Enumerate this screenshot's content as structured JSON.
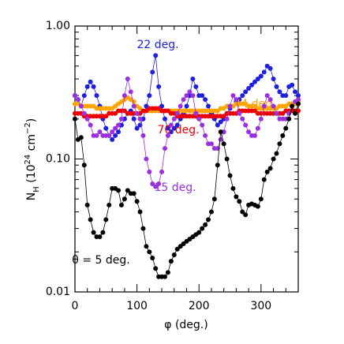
{
  "chart_data": {
    "type": "scatter_line",
    "xlabel": "φ (deg.)",
    "ylabel": [
      {
        "text": "N"
      },
      {
        "text": "H",
        "style": "sub"
      },
      {
        "text": " (10"
      },
      {
        "text": "24",
        "style": "sup"
      },
      {
        "text": " cm"
      },
      {
        "text": "−2",
        "style": "sup"
      },
      {
        "text": ")"
      }
    ],
    "log_y": true,
    "xlim": [
      0,
      360
    ],
    "xticks": [
      0,
      100,
      200,
      300
    ],
    "xminorticks": [
      20,
      40,
      60,
      80,
      120,
      140,
      160,
      180,
      220,
      240,
      260,
      280,
      320,
      340
    ],
    "ylim": [
      0.01,
      1
    ],
    "yticks": [
      0.01,
      {
        "value": 0.1,
        "label": "0.10"
      },
      {
        "value": 1,
        "label": "1.00"
      }
    ],
    "yminorticks": [
      0.02,
      0.03,
      0.04,
      0.05,
      0.06,
      0.07,
      0.08,
      0.09,
      0.2,
      0.3,
      0.4,
      0.5,
      0.6,
      0.7,
      0.8,
      0.9
    ],
    "x": [
      0,
      5,
      10,
      15,
      20,
      25,
      30,
      35,
      40,
      45,
      50,
      55,
      60,
      65,
      70,
      75,
      80,
      85,
      90,
      95,
      100,
      105,
      110,
      115,
      120,
      125,
      130,
      135,
      140,
      145,
      150,
      155,
      160,
      165,
      170,
      175,
      180,
      185,
      190,
      195,
      200,
      205,
      210,
      215,
      220,
      225,
      230,
      235,
      240,
      245,
      250,
      255,
      260,
      265,
      270,
      275,
      280,
      285,
      290,
      295,
      300,
      305,
      310,
      315,
      320,
      325,
      330,
      335,
      340,
      345,
      350,
      355,
      360
    ],
    "series": [
      {
        "name": "22 deg.",
        "color": "#1f1fe0",
        "values": [
          0.3,
          0.28,
          0.25,
          0.3,
          0.35,
          0.38,
          0.35,
          0.3,
          0.25,
          0.2,
          0.17,
          0.15,
          0.14,
          0.15,
          0.16,
          0.18,
          0.2,
          0.22,
          0.23,
          0.2,
          0.17,
          0.18,
          0.2,
          0.25,
          0.3,
          0.45,
          0.6,
          0.35,
          0.25,
          0.2,
          0.17,
          0.16,
          0.17,
          0.18,
          0.2,
          0.22,
          0.25,
          0.3,
          0.4,
          0.35,
          0.3,
          0.3,
          0.28,
          0.25,
          0.22,
          0.2,
          0.18,
          0.19,
          0.2,
          0.22,
          0.24,
          0.25,
          0.27,
          0.28,
          0.3,
          0.32,
          0.34,
          0.36,
          0.38,
          0.4,
          0.42,
          0.45,
          0.5,
          0.48,
          0.4,
          0.35,
          0.32,
          0.3,
          0.3,
          0.35,
          0.36,
          0.32,
          0.3
        ]
      },
      {
        "name": "44 deg.",
        "color": "#ffa500",
        "values": [
          0.26,
          0.26,
          0.25,
          0.25,
          0.25,
          0.25,
          0.25,
          0.24,
          0.24,
          0.24,
          0.24,
          0.24,
          0.24,
          0.25,
          0.26,
          0.27,
          0.28,
          0.29,
          0.28,
          0.27,
          0.25,
          0.24,
          0.23,
          0.23,
          0.23,
          0.23,
          0.23,
          0.23,
          0.23,
          0.23,
          0.23,
          0.23,
          0.23,
          0.23,
          0.23,
          0.23,
          0.23,
          0.23,
          0.23,
          0.23,
          0.23,
          0.23,
          0.23,
          0.23,
          0.23,
          0.23,
          0.23,
          0.24,
          0.24,
          0.25,
          0.25,
          0.25,
          0.26,
          0.26,
          0.26,
          0.26,
          0.25,
          0.25,
          0.25,
          0.24,
          0.24,
          0.24,
          0.24,
          0.24,
          0.24,
          0.24,
          0.25,
          0.25,
          0.25,
          0.26,
          0.26,
          0.26,
          0.27
        ]
      },
      {
        "name": "70 deg.",
        "color": "#ee0000",
        "values": [
          0.22,
          0.22,
          0.22,
          0.21,
          0.21,
          0.21,
          0.21,
          0.21,
          0.21,
          0.21,
          0.21,
          0.22,
          0.22,
          0.22,
          0.23,
          0.23,
          0.23,
          0.22,
          0.22,
          0.22,
          0.22,
          0.22,
          0.23,
          0.23,
          0.24,
          0.24,
          0.24,
          0.24,
          0.23,
          0.23,
          0.23,
          0.22,
          0.22,
          0.21,
          0.21,
          0.21,
          0.21,
          0.21,
          0.21,
          0.21,
          0.21,
          0.21,
          0.21,
          0.21,
          0.21,
          0.21,
          0.21,
          0.21,
          0.21,
          0.22,
          0.22,
          0.22,
          0.22,
          0.23,
          0.23,
          0.23,
          0.23,
          0.23,
          0.23,
          0.22,
          0.22,
          0.22,
          0.22,
          0.22,
          0.22,
          0.22,
          0.22,
          0.22,
          0.23,
          0.23,
          0.23,
          0.23,
          0.23
        ]
      },
      {
        "name": "15 deg.",
        "color": "#9b30e0",
        "values": [
          0.3,
          0.28,
          0.25,
          0.22,
          0.2,
          0.18,
          0.15,
          0.15,
          0.16,
          0.15,
          0.15,
          0.15,
          0.16,
          0.17,
          0.18,
          0.2,
          0.3,
          0.4,
          0.32,
          0.25,
          0.22,
          0.2,
          0.15,
          0.1,
          0.08,
          0.065,
          0.062,
          0.065,
          0.08,
          0.12,
          0.15,
          0.18,
          0.2,
          0.22,
          0.25,
          0.28,
          0.3,
          0.32,
          0.3,
          0.22,
          0.2,
          0.18,
          0.15,
          0.13,
          0.13,
          0.12,
          0.12,
          0.14,
          0.16,
          0.2,
          0.25,
          0.3,
          0.28,
          0.22,
          0.2,
          0.18,
          0.16,
          0.15,
          0.15,
          0.17,
          0.2,
          0.25,
          0.3,
          0.28,
          0.25,
          0.22,
          0.2,
          0.2,
          0.2,
          0.22,
          0.25,
          0.27,
          0.28
        ]
      },
      {
        "name": "θ = 5 deg.",
        "color": "#000000",
        "values": [
          0.2,
          0.14,
          0.145,
          0.09,
          0.045,
          0.035,
          0.028,
          0.026,
          0.026,
          0.028,
          0.035,
          0.045,
          0.06,
          0.06,
          0.058,
          0.045,
          0.05,
          0.058,
          0.055,
          0.055,
          0.048,
          0.04,
          0.03,
          0.022,
          0.02,
          0.018,
          0.015,
          0.013,
          0.013,
          0.013,
          0.014,
          0.017,
          0.019,
          0.021,
          0.022,
          0.023,
          0.024,
          0.025,
          0.026,
          0.027,
          0.028,
          0.03,
          0.032,
          0.035,
          0.04,
          0.05,
          0.09,
          0.16,
          0.13,
          0.1,
          0.075,
          0.06,
          0.052,
          0.048,
          0.04,
          0.038,
          0.045,
          0.046,
          0.045,
          0.044,
          0.05,
          0.07,
          0.08,
          0.085,
          0.1,
          0.11,
          0.13,
          0.15,
          0.17,
          0.2,
          0.25,
          0.22,
          0.26
        ]
      }
    ]
  }
}
